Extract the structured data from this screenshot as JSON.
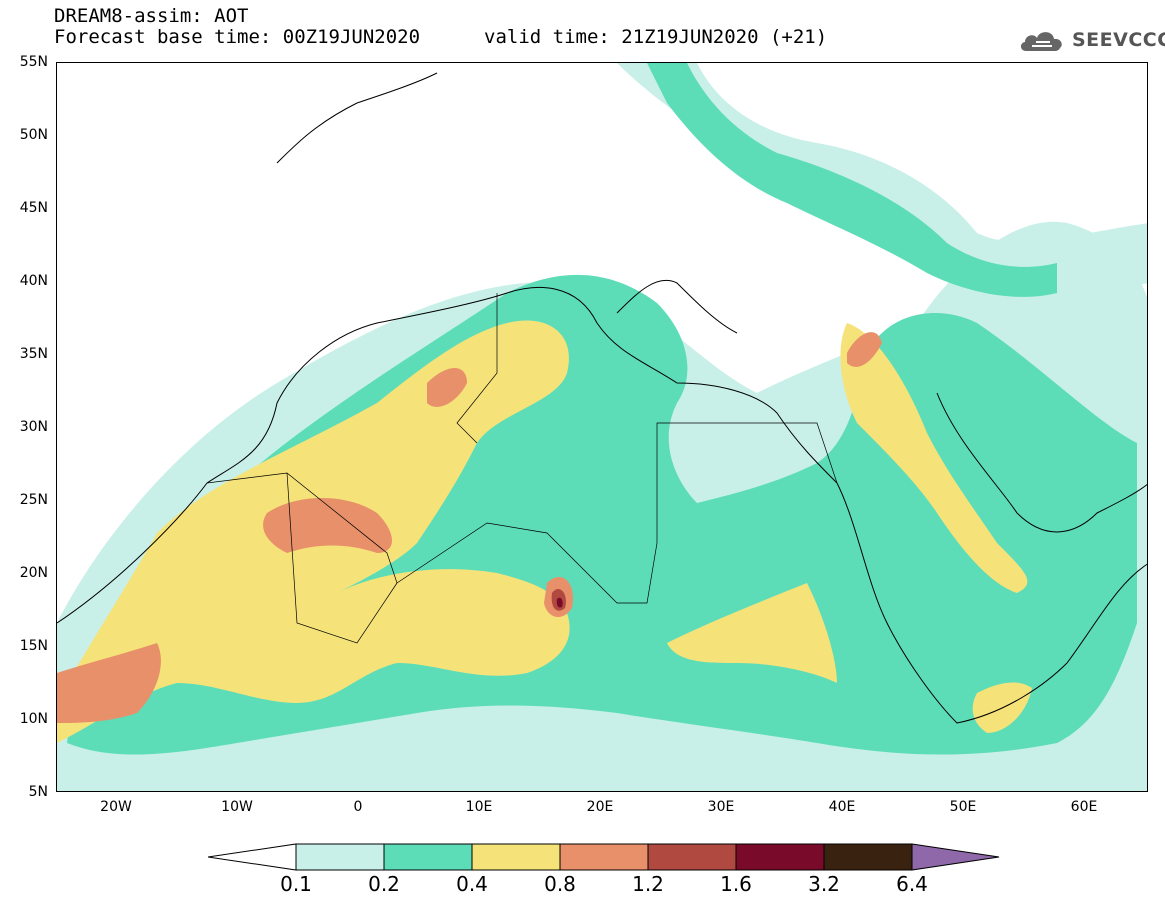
{
  "header": {
    "title": "DREAM8-assim: AOT",
    "base_time": "Forecast base time: 00Z19JUN2020",
    "valid_time": "valid time: 21Z19JUN2020 (+21)"
  },
  "logo": {
    "text": "SEEVCCC",
    "icon": "cloud-icon"
  },
  "map": {
    "lon_range": [
      -25,
      65
    ],
    "lat_range": [
      5,
      55
    ],
    "y_ticks": [
      "55N",
      "50N",
      "45N",
      "40N",
      "35N",
      "30N",
      "25N",
      "20N",
      "15N",
      "10N",
      "5N"
    ],
    "x_ticks": [
      "20W",
      "10W",
      "0",
      "10E",
      "20E",
      "30E",
      "40E",
      "50E",
      "60E"
    ]
  },
  "colorbar": {
    "labels": [
      "0.1",
      "0.2",
      "0.4",
      "0.8",
      "1.2",
      "1.6",
      "3.2",
      "6.4"
    ],
    "colors": {
      "low": "#ffffff",
      "c1": "#c8f0e8",
      "c2": "#5ddcb8",
      "c3": "#f5e37a",
      "c4": "#e8906a",
      "c5": "#b04a40",
      "c6": "#7a0a2a",
      "c7": "#3a2210",
      "high": "#8e68a8"
    }
  }
}
